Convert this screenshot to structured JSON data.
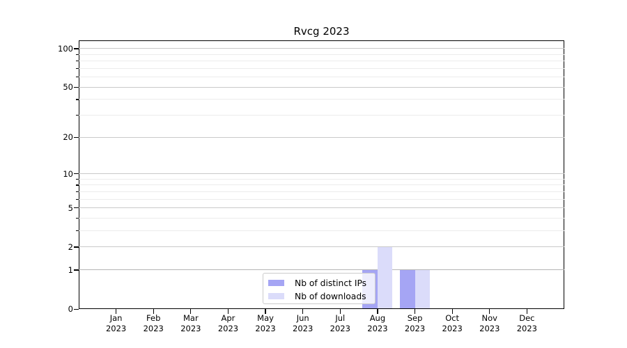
{
  "title": "Rvcg 2023",
  "legend": {
    "items": [
      {
        "label": "Nb of distinct IPs",
        "color": "#a5a5f4"
      },
      {
        "label": "Nb of downloads",
        "color": "#dbdcfa"
      }
    ]
  },
  "chart_data": {
    "type": "bar",
    "title": "Rvcg 2023",
    "categories": [
      "Jan 2023",
      "Feb 2023",
      "Mar 2023",
      "Apr 2023",
      "May 2023",
      "Jun 2023",
      "Jul 2023",
      "Aug 2023",
      "Sep 2023",
      "Oct 2023",
      "Nov 2023",
      "Dec 2023"
    ],
    "series": [
      {
        "name": "Nb of distinct IPs",
        "color": "#a5a5f4",
        "values": [
          0,
          0,
          0,
          0,
          0,
          0,
          0,
          1,
          1,
          0,
          0,
          0
        ]
      },
      {
        "name": "Nb of downloads",
        "color": "#dbdcfa",
        "values": [
          0,
          0,
          0,
          0,
          0,
          0,
          0,
          2,
          1,
          0,
          0,
          0
        ]
      }
    ],
    "xlabel": "",
    "ylabel": "",
    "yscale": "log1p",
    "ylim": [
      0,
      116
    ],
    "y_major_ticks": [
      0,
      1,
      2,
      5,
      10,
      20,
      50,
      100
    ],
    "y_minor_ticks": [
      3,
      4,
      6,
      7,
      8,
      9,
      30,
      40,
      60,
      70,
      80,
      90
    ],
    "grid": true,
    "legend_position": "inside-bottom-center"
  },
  "colors": {
    "major_grid": "#c9c9c9",
    "minor_grid": "#ececec",
    "unit_grid": "#b5b5b5",
    "axis": "#000000",
    "background": "#ffffff"
  }
}
